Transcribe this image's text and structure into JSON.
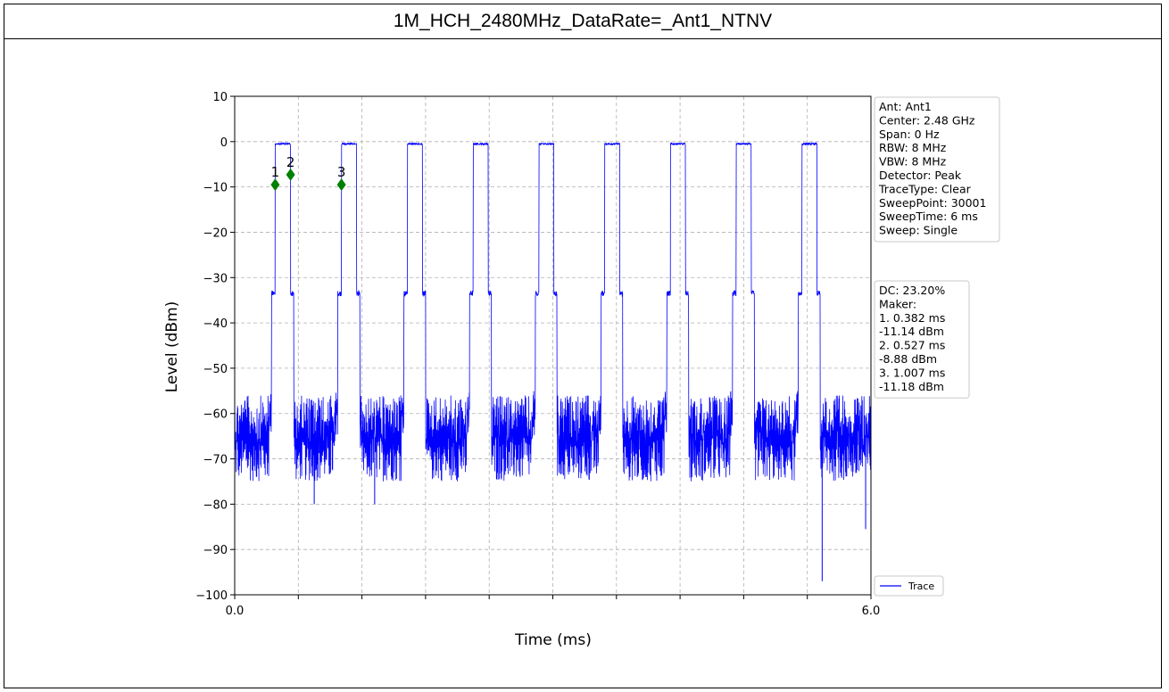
{
  "page_title": "1M_HCH_2480MHz_DataRate=_Ant1_NTNV",
  "chart_data": {
    "type": "line",
    "xlabel": "Time (ms)",
    "ylabel": "Level (dBm)",
    "xlim": [
      0.0,
      6.0
    ],
    "ylim": [
      -100,
      10
    ],
    "x_ticks": [
      0.0,
      0.6,
      1.2,
      1.8,
      2.4,
      3.0,
      3.6,
      4.2,
      4.8,
      5.4,
      6.0
    ],
    "x_tick_labels": [
      "0.0",
      "",
      "",
      "",
      "",
      "",
      "",
      "",
      "",
      "",
      "6.0"
    ],
    "y_ticks": [
      10,
      0,
      -10,
      -20,
      -30,
      -40,
      -50,
      -60,
      -70,
      -80,
      -90,
      -100
    ],
    "y_tick_labels": [
      "10",
      "0",
      "−10",
      "−20",
      "−30",
      "−40",
      "−50",
      "−60",
      "−70",
      "−80",
      "−90",
      "−100"
    ],
    "grid": true,
    "series": [
      {
        "name": "Trace",
        "color": "#0000ff",
        "noise_floor_dbm": [
          -75,
          -56
        ],
        "preamble_level_dbm": -33.5,
        "burst_level_dbm": -0.5,
        "bursts_ms": [
          [
            0.382,
            0.527
          ],
          [
            1.007,
            1.15
          ],
          [
            1.63,
            1.77
          ],
          [
            2.25,
            2.39
          ],
          [
            2.87,
            3.01
          ],
          [
            3.49,
            3.63
          ],
          [
            4.11,
            4.25
          ],
          [
            4.73,
            4.87
          ],
          [
            5.35,
            5.49
          ]
        ],
        "spikes": [
          {
            "x": 5.54,
            "y": -97
          },
          {
            "x": 5.95,
            "y": -85.5
          },
          {
            "x": 0.75,
            "y": -80
          },
          {
            "x": 1.32,
            "y": -80
          }
        ]
      }
    ],
    "markers": [
      {
        "label": "1",
        "x": 0.382,
        "y": -9.5,
        "color": "#008000"
      },
      {
        "label": "2",
        "x": 0.527,
        "y": -7.3,
        "color": "#008000"
      },
      {
        "label": "3",
        "x": 1.007,
        "y": -9.5,
        "color": "#008000"
      }
    ],
    "legend_placement": "bottom-right",
    "info_box": [
      "Ant: Ant1",
      "Center: 2.48 GHz",
      "Span: 0 Hz",
      "RBW: 8 MHz",
      "VBW: 8 MHz",
      "Detector: Peak",
      "TraceType: Clear",
      "SweepPoint: 30001",
      "SweepTime: 6 ms",
      "Sweep: Single"
    ],
    "marker_box": [
      "DC: 23.20%",
      "Maker:",
      "1. 0.382 ms",
      "    -11.14 dBm",
      "2. 0.527 ms",
      "    -8.88 dBm",
      "3. 1.007 ms",
      "    -11.18 dBm"
    ]
  }
}
